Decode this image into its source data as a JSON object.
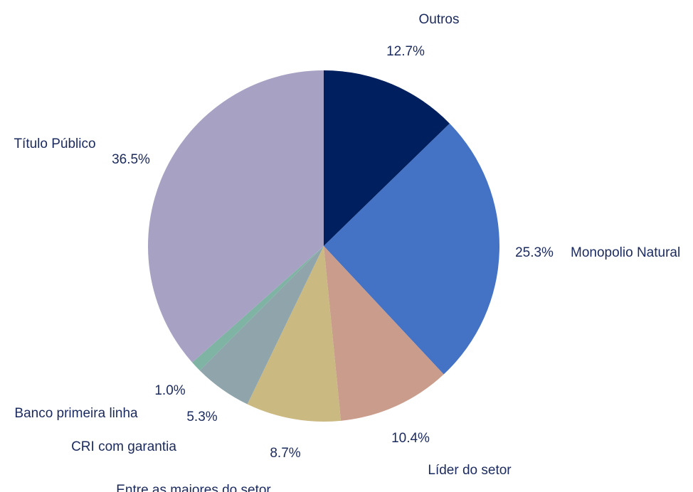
{
  "chart_data": {
    "type": "pie",
    "title": "",
    "start_angle_deg": 0,
    "direction": "clockwise",
    "legend": "none",
    "slices": [
      {
        "name": "Outros",
        "value": 12.7,
        "label": "12.7%",
        "color": "#001f5f"
      },
      {
        "name": "Monopolio Natural",
        "value": 25.3,
        "label": "25.3%",
        "color": "#4472c4"
      },
      {
        "name": "Líder do setor",
        "value": 10.4,
        "label": "10.4%",
        "color": "#ca9c8c"
      },
      {
        "name": "Entre as maiores do setor",
        "value": 8.7,
        "label": "8.7%",
        "color": "#cbb982"
      },
      {
        "name": "CRI com garantia",
        "value": 5.3,
        "label": "5.3%",
        "color": "#8fa4ab"
      },
      {
        "name": "Banco primeira linha",
        "value": 1.0,
        "label": "1.0%",
        "color": "#7fb3a4"
      },
      {
        "name": "Título Público",
        "value": 36.5,
        "label": "36.5%",
        "color": "#a7a1c3"
      }
    ]
  }
}
